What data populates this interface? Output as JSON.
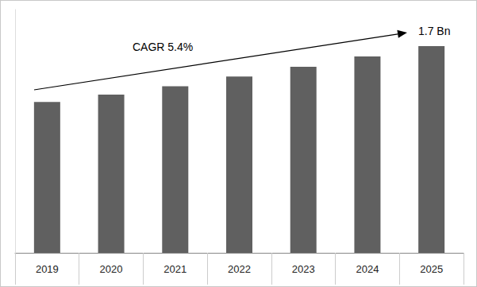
{
  "chart_data": {
    "type": "bar",
    "categories": [
      "2019",
      "2020",
      "2021",
      "2022",
      "2023",
      "2024",
      "2025"
    ],
    "values": [
      1.24,
      1.3,
      1.37,
      1.45,
      1.53,
      1.615,
      1.7
    ],
    "color": "#606060",
    "ylim": [
      0,
      2.0
    ],
    "grid": false,
    "tick_labels": "x",
    "annotations": [
      "CAGR 5.4%",
      "1.7 Bn"
    ]
  }
}
